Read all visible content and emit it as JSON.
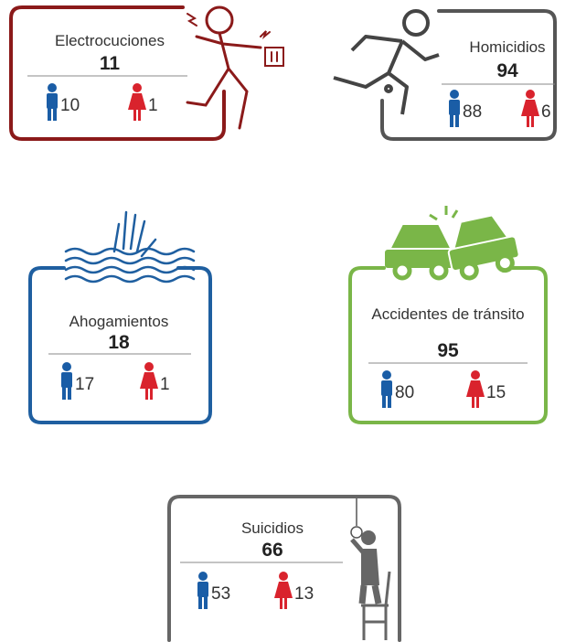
{
  "cards": [
    {
      "title": "Electrocuciones",
      "total": "11",
      "men": "10",
      "women": "1"
    },
    {
      "title": "Homicidios",
      "total": "94",
      "men": "88",
      "women": "6"
    },
    {
      "title": "Ahogamientos",
      "total": "18",
      "men": "17",
      "women": "1"
    },
    {
      "title": "Accidentes de tránsito",
      "total": "95",
      "men": "80",
      "women": "15"
    },
    {
      "title": "Suicidios",
      "total": "66",
      "men": "53",
      "women": "13"
    }
  ]
}
